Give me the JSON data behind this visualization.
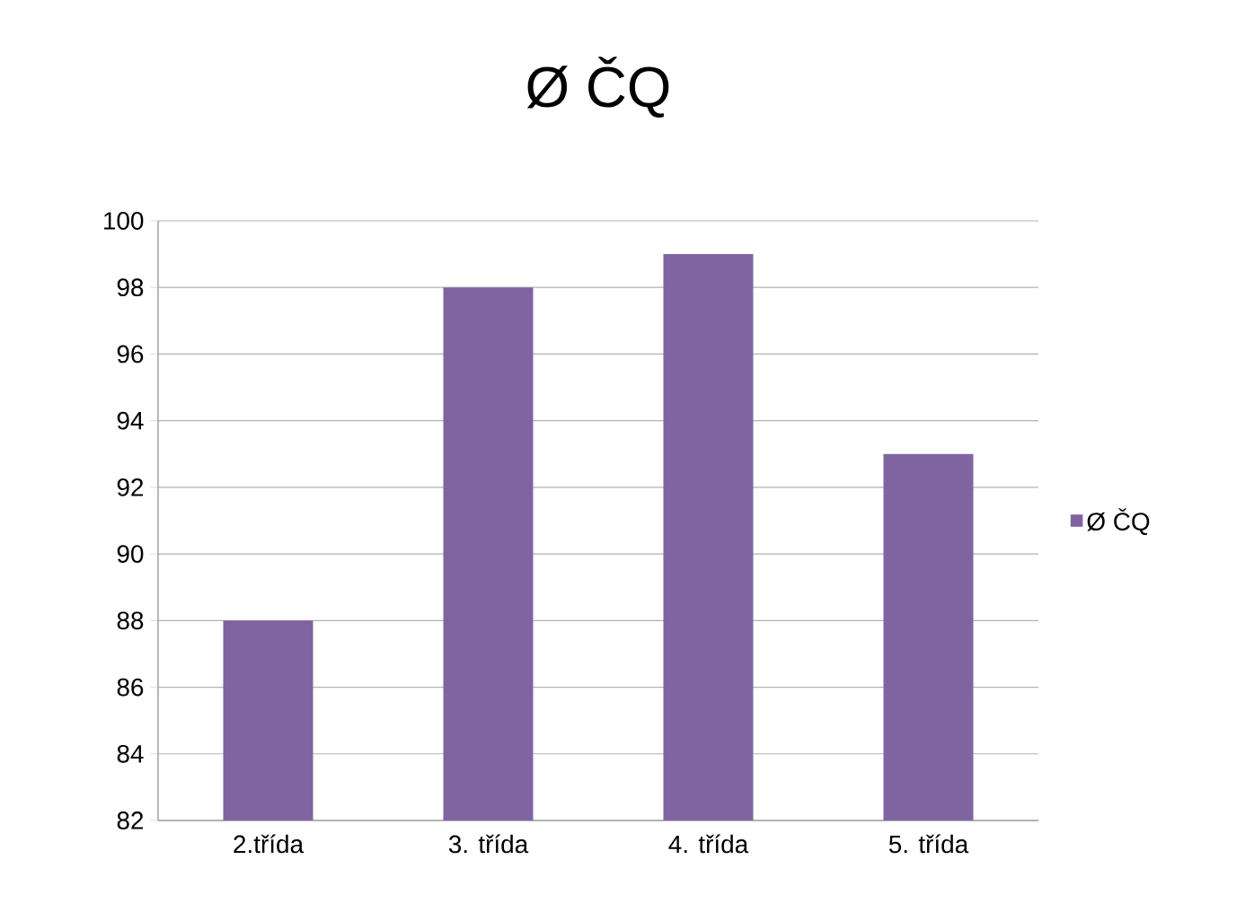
{
  "chart_data": {
    "type": "bar",
    "title": "Ø ČQ",
    "categories": [
      "2.třída",
      "3. třída",
      "4. třída",
      "5. třída"
    ],
    "series": [
      {
        "name": "Ø ČQ",
        "color": "#8064a2",
        "values": [
          88,
          98,
          99,
          93
        ]
      }
    ],
    "ylim": [
      82,
      100
    ],
    "yticks": [
      82,
      84,
      86,
      88,
      90,
      92,
      94,
      96,
      98,
      100
    ],
    "grid": "y",
    "legend": "right"
  }
}
